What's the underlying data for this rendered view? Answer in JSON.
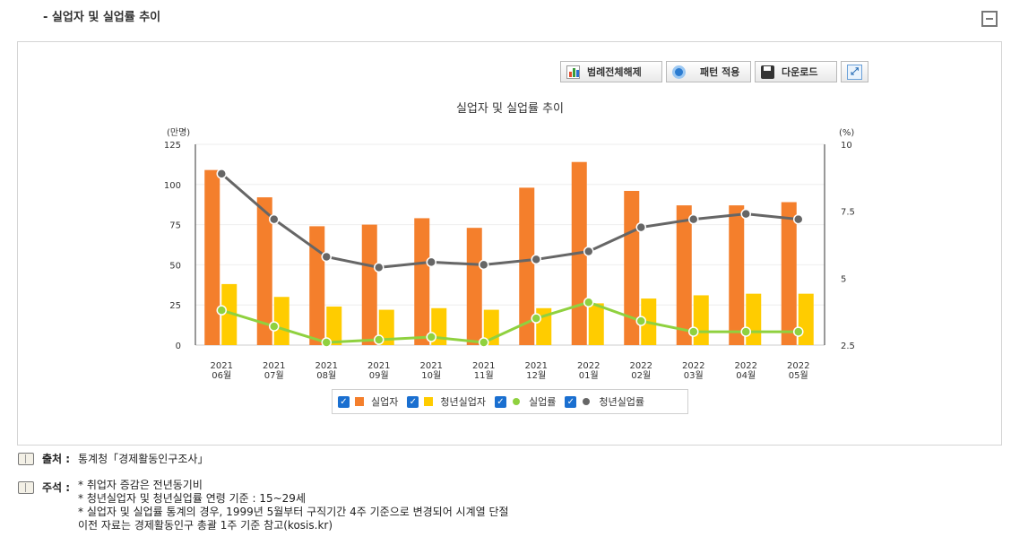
{
  "section": {
    "title": "- 실업자 및 실업률 추이"
  },
  "toolbar": {
    "legend_toggle_label": "범례전체해제",
    "pattern_label": "패턴 적용",
    "download_label": "다운로드"
  },
  "chart_data": {
    "type": "bar",
    "title": "실업자 및 실업률 추이",
    "categories": [
      "2021\n06월",
      "2021\n07월",
      "2021\n08월",
      "2021\n09월",
      "2021\n10월",
      "2021\n11월",
      "2021\n12월",
      "2022\n01월",
      "2022\n02월",
      "2022\n03월",
      "2022\n04월",
      "2022\n05월"
    ],
    "y_left": {
      "unit_label": "(만명)",
      "range": [
        0,
        125
      ],
      "ticks": [
        "0",
        "25",
        "50",
        "75",
        "100",
        "125"
      ]
    },
    "y_right": {
      "unit_label": "(%)",
      "range": [
        2.5,
        10
      ],
      "ticks": [
        "2.5",
        "5",
        "7.5",
        "10"
      ]
    },
    "grid": true,
    "legend_position": "bottom",
    "series": [
      {
        "name": "실업자",
        "type": "bar",
        "axis": "left",
        "color": "#f47f2c",
        "values": [
          109,
          92,
          74,
          75,
          79,
          73,
          98,
          114,
          96,
          87,
          87,
          89
        ]
      },
      {
        "name": "청년실업자",
        "type": "bar",
        "axis": "left",
        "color": "#ffcc00",
        "values": [
          38,
          30,
          24,
          22,
          23,
          22,
          23,
          26,
          29,
          31,
          32,
          32
        ]
      },
      {
        "name": "실업률",
        "type": "line",
        "axis": "right",
        "color": "#8fd13f",
        "values": [
          3.8,
          3.2,
          2.6,
          2.7,
          2.8,
          2.6,
          3.5,
          4.1,
          3.4,
          3.0,
          3.0,
          3.0
        ]
      },
      {
        "name": "청년실업률",
        "type": "line",
        "axis": "right",
        "color": "#666666",
        "values": [
          8.9,
          7.2,
          5.8,
          5.4,
          5.6,
          5.5,
          5.7,
          6.0,
          6.9,
          7.2,
          7.4,
          7.2
        ]
      }
    ]
  },
  "notes": {
    "source_label": "출처 :",
    "source_text": "통계청「경제활동인구조사」",
    "remark_label": "주석 :",
    "remark_lines": [
      "* 취업자 증감은 전년동기비",
      "* 청년실업자 및 청년실업률 연령 기준 : 15~29세",
      "* 실업자 및 실업률 통계의 경우, 1999년 5월부터 구직기간 4주 기준으로 변경되어 시계열 단절",
      "이전 자료는 경제활동인구 총괄 1주 기준 참고(kosis.kr)"
    ]
  }
}
